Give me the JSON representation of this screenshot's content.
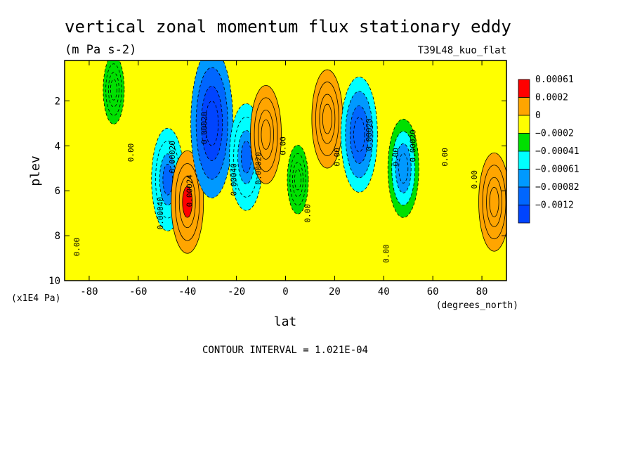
{
  "chart_data": {
    "type": "heatmap",
    "title": "vertical zonal momentum flux stationary eddy",
    "subtitle": "(m Pa s-2)",
    "run_label": "T39L48_kuo_flat",
    "xlabel": "lat",
    "x_units": "(degrees_north)",
    "ylabel": "plev",
    "y_units": "(x1E4 Pa)",
    "footer": "CONTOUR INTERVAL = 1.021E-04",
    "xlim": [
      -90,
      90
    ],
    "ylim": [
      10,
      0.2
    ],
    "x_ticks": [
      -80,
      -60,
      -40,
      -20,
      0,
      20,
      40,
      60,
      80
    ],
    "y_ticks": [
      2,
      4,
      6,
      8,
      10
    ],
    "legend_placement": "right",
    "legend": [
      {
        "label": "0.00061",
        "color": "#ff0000"
      },
      {
        "label": "0.0002",
        "color": "#ffa500"
      },
      {
        "label": "0",
        "color": "#ffff00"
      },
      {
        "label": "−0.0002",
        "color": "#00e000"
      },
      {
        "label": "−0.00041",
        "color": "#00ffff"
      },
      {
        "label": "−0.00061",
        "color": "#0099ff"
      },
      {
        "label": "−0.00082",
        "color": "#0066ff"
      },
      {
        "label": "−0.0012",
        "color": ""
      }
    ],
    "background_value": 0.00015,
    "features": [
      {
        "lat": -70,
        "plev": 1.5,
        "value": -0.00015
      },
      {
        "lat": -48,
        "plev": 5.5,
        "value": -0.00055
      },
      {
        "lat": -40,
        "plev": 6.5,
        "value": 0.00055
      },
      {
        "lat": -30,
        "plev": 3.0,
        "value": -0.0011
      },
      {
        "lat": -16,
        "plev": 4.5,
        "value": -0.0006
      },
      {
        "lat": -8,
        "plev": 3.5,
        "value": 0.0005
      },
      {
        "lat": 5,
        "plev": 5.5,
        "value": -0.00015
      },
      {
        "lat": 17,
        "plev": 2.8,
        "value": 0.0005
      },
      {
        "lat": 30,
        "plev": 3.5,
        "value": -0.0007
      },
      {
        "lat": 48,
        "plev": 5.0,
        "value": -0.0005
      },
      {
        "lat": 85,
        "plev": 6.5,
        "value": 0.0005
      }
    ],
    "contour_labels": [
      {
        "text": "0.00",
        "lat": -84,
        "plev": 8.5
      },
      {
        "text": "0.00",
        "lat": -62,
        "plev": 4.3
      },
      {
        "text": "0.00040",
        "lat": -50,
        "plev": 7.0
      },
      {
        "text": "0.00020",
        "lat": -45,
        "plev": 4.5
      },
      {
        "text": "0.00024",
        "lat": -38,
        "plev": 6.0
      },
      {
        "text": "0.00020",
        "lat": -32,
        "plev": 3.2
      },
      {
        "text": "0.00040",
        "lat": -20,
        "plev": 5.5
      },
      {
        "text": "0.00020",
        "lat": -10,
        "plev": 5.0
      },
      {
        "text": "0.00",
        "lat": 0,
        "plev": 4.0
      },
      {
        "text": "0.00",
        "lat": 10,
        "plev": 7.0
      },
      {
        "text": "0.00",
        "lat": 22,
        "plev": 4.5
      },
      {
        "text": "0.00020",
        "lat": 35,
        "plev": 3.5
      },
      {
        "text": "0.00",
        "lat": 42,
        "plev": 8.8
      },
      {
        "text": "0.00",
        "lat": 46,
        "plev": 4.5
      },
      {
        "text": "0.00020",
        "lat": 53,
        "plev": 4.0
      },
      {
        "text": "0.00",
        "lat": 66,
        "plev": 4.5
      },
      {
        "text": "0.00",
        "lat": 78,
        "plev": 5.5
      }
    ]
  }
}
